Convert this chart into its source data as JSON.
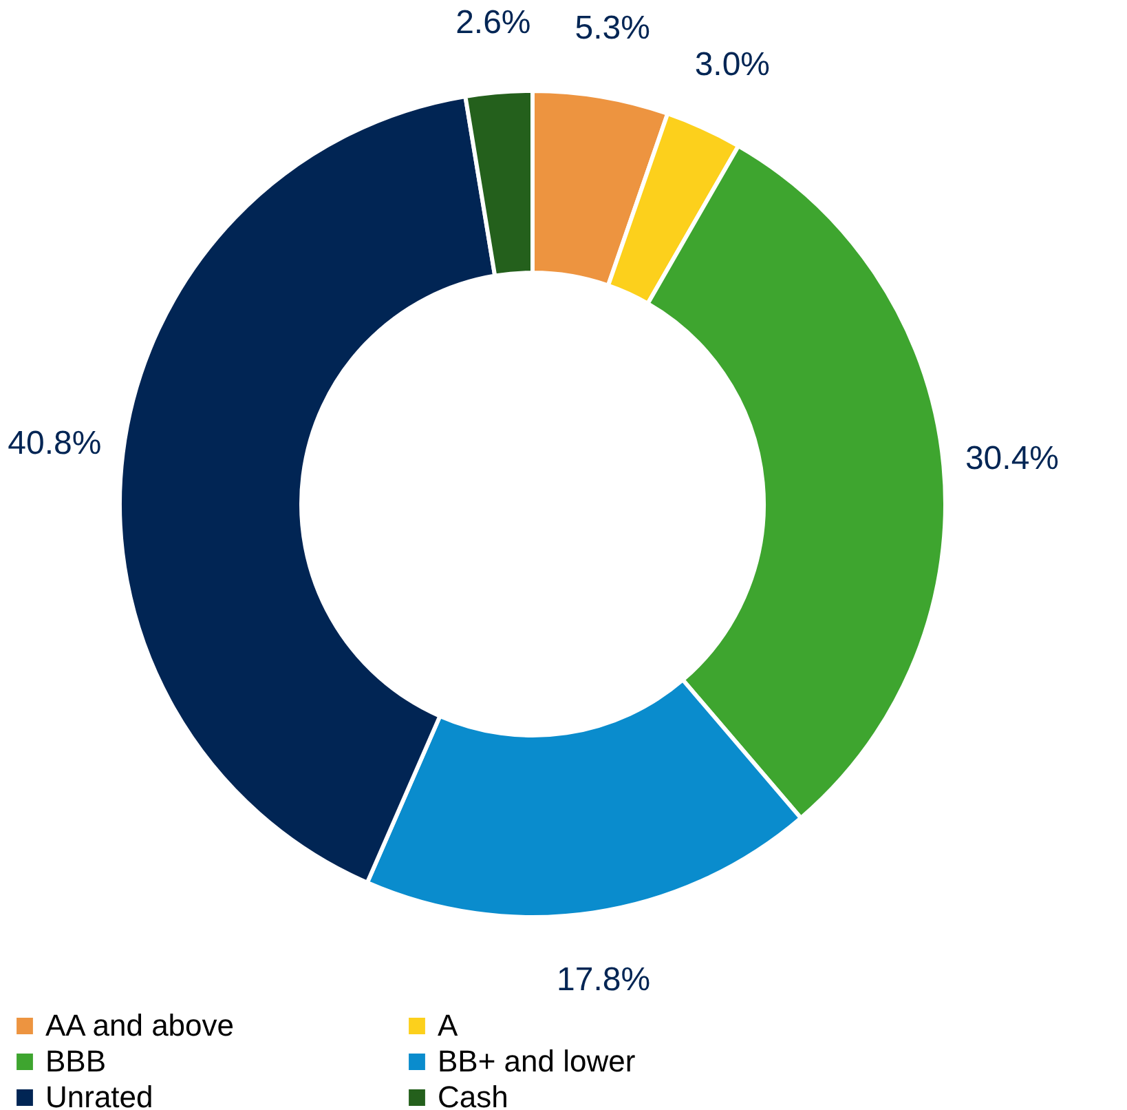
{
  "chart_data": {
    "type": "donut",
    "categories": [
      "AA and above",
      "A",
      "BBB",
      "BB+ and lower",
      "Unrated",
      "Cash"
    ],
    "values": [
      5.3,
      3.0,
      30.4,
      17.8,
      40.8,
      2.6
    ],
    "colors": [
      "#ed9440",
      "#fcd01c",
      "#3ea52f",
      "#0a8ccd",
      "#012554",
      "#24601c"
    ],
    "value_labels": [
      "5.3%",
      "3.0%",
      "30.4%",
      "17.8%",
      "40.8%",
      "2.6%"
    ],
    "legend": "bottom"
  }
}
